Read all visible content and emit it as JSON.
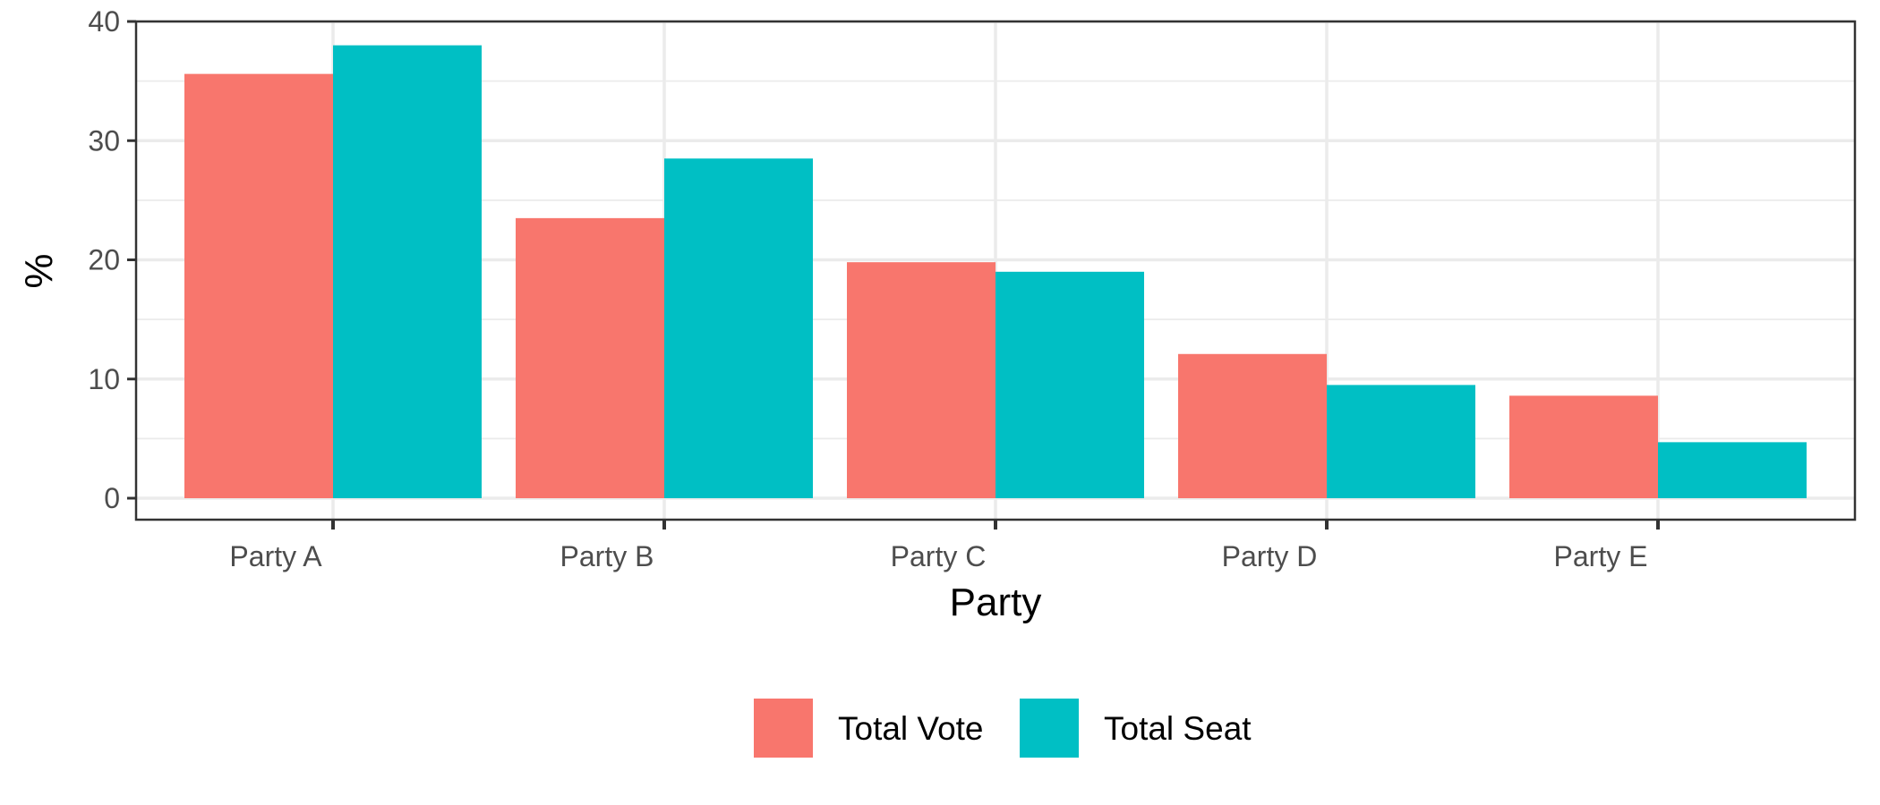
{
  "chart_data": {
    "type": "bar",
    "categories": [
      "Party A",
      "Party B",
      "Party C",
      "Party D",
      "Party E"
    ],
    "series": [
      {
        "name": "Total Vote",
        "values": [
          35.6,
          23.5,
          19.8,
          12.1,
          8.6
        ]
      },
      {
        "name": "Total Seat",
        "values": [
          38.0,
          28.5,
          19.0,
          9.5,
          4.7
        ]
      }
    ],
    "xlabel": "Party",
    "ylabel": "%",
    "ylim": [
      0,
      40
    ],
    "yticks": [
      0,
      10,
      20,
      30,
      40
    ],
    "grid": true,
    "legend": "bottom",
    "colors": {
      "series": [
        "#F8766D",
        "#00BFC4"
      ],
      "grid": "#EBEBEB",
      "border": "#333333",
      "tick_text": "#4D4D4D"
    }
  }
}
